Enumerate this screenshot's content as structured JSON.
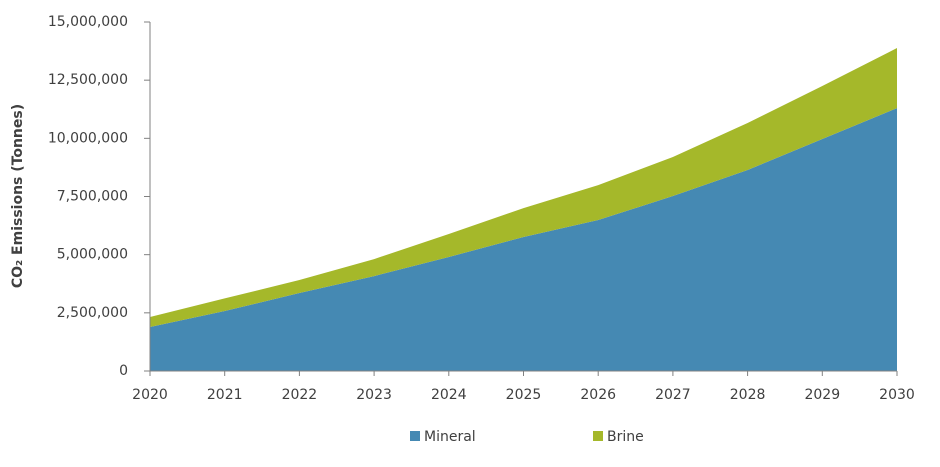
{
  "chart_data": {
    "type": "stacked-area",
    "y_label": "CO₂ Emissions (Tonnes)",
    "categories": [
      "2020",
      "2021",
      "2022",
      "2023",
      "2024",
      "2025",
      "2026",
      "2027",
      "2028",
      "2029",
      "2030"
    ],
    "series": [
      {
        "name": "Mineral",
        "color": "#4589b3",
        "values": [
          1890000,
          2580000,
          3350000,
          4080000,
          4900000,
          5760000,
          6490000,
          7520000,
          8640000,
          9970000,
          11300000
        ]
      },
      {
        "name": "Brine",
        "color": "#a5b82a",
        "values": [
          430000,
          540000,
          560000,
          730000,
          990000,
          1240000,
          1500000,
          1680000,
          2020000,
          2280000,
          2580000
        ]
      }
    ],
    "ylim": [
      0,
      15000000
    ],
    "yticks": [
      0,
      {
        "value": 2500000,
        "label": "2,500,000"
      },
      {
        "value": 5000000,
        "label": "5,000,000"
      },
      {
        "value": 7500000,
        "label": "7,500,000"
      },
      {
        "value": 10000000,
        "label": "10,000,000"
      },
      {
        "value": 12500000,
        "label": "12,500,000"
      },
      {
        "value": 15000000,
        "label": "15,000,000"
      }
    ],
    "legend": "bottom"
  }
}
